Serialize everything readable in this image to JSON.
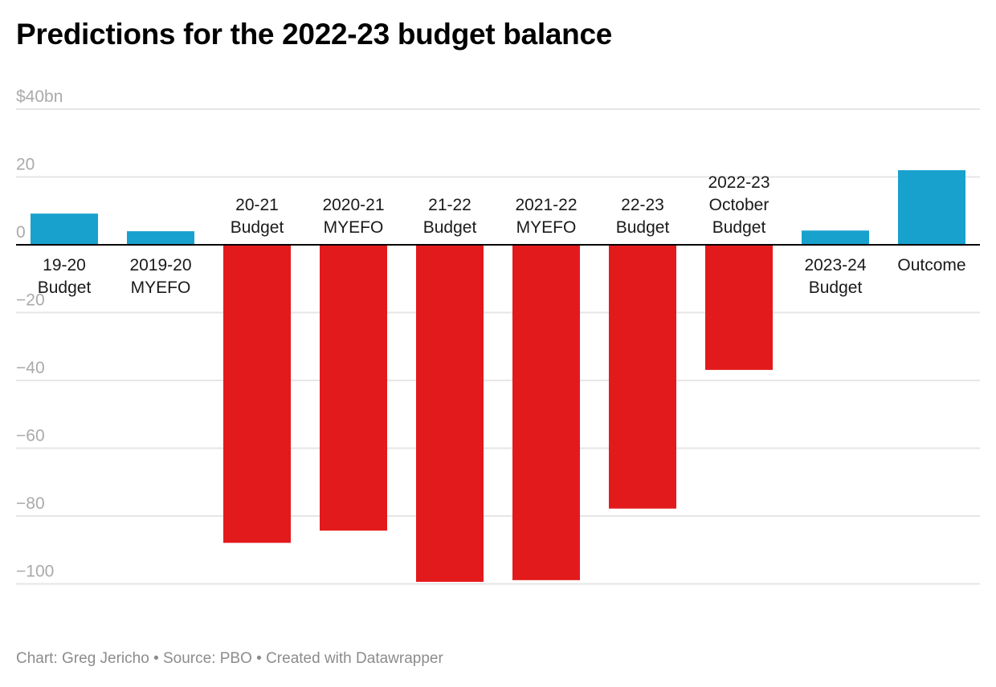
{
  "chart_data": {
    "type": "bar",
    "title": "Predictions for the 2022-23 budget balance",
    "xlabel": "",
    "ylabel": "",
    "unit_prefix": "$",
    "unit_suffix": "bn",
    "ylim": [
      -100,
      40
    ],
    "yticks": [
      40,
      20,
      0,
      -20,
      -40,
      -60,
      -80,
      -100
    ],
    "ytick_labels": [
      "$40bn",
      "20",
      "0",
      "−20",
      "−40",
      "−60",
      "−80",
      "−100"
    ],
    "grid": true,
    "categories": [
      [
        "19-20",
        "Budget"
      ],
      [
        "2019-20",
        "MYEFO"
      ],
      [
        "20-21",
        "Budget"
      ],
      [
        "2020-21",
        "MYEFO"
      ],
      [
        "21-22",
        "Budget"
      ],
      [
        "2021-22",
        "MYEFO"
      ],
      [
        "22-23",
        "Budget"
      ],
      [
        "2022-23",
        "October",
        "Budget"
      ],
      [
        "2023-24",
        "Budget"
      ],
      [
        "Outcome"
      ]
    ],
    "values": [
      9.2,
      4.0,
      -87.9,
      -84.3,
      -99.4,
      -98.9,
      -77.8,
      -36.9,
      4.2,
      22.0
    ],
    "colors": {
      "positive": "#18a1cd",
      "negative": "#e31a1c",
      "grid": "#e6e6e6",
      "axis": "#000000",
      "tick_text": "#aaaaaa"
    }
  },
  "footer": {
    "text": "Chart: Greg Jericho  • Source: PBO • Created with Datawrapper"
  }
}
